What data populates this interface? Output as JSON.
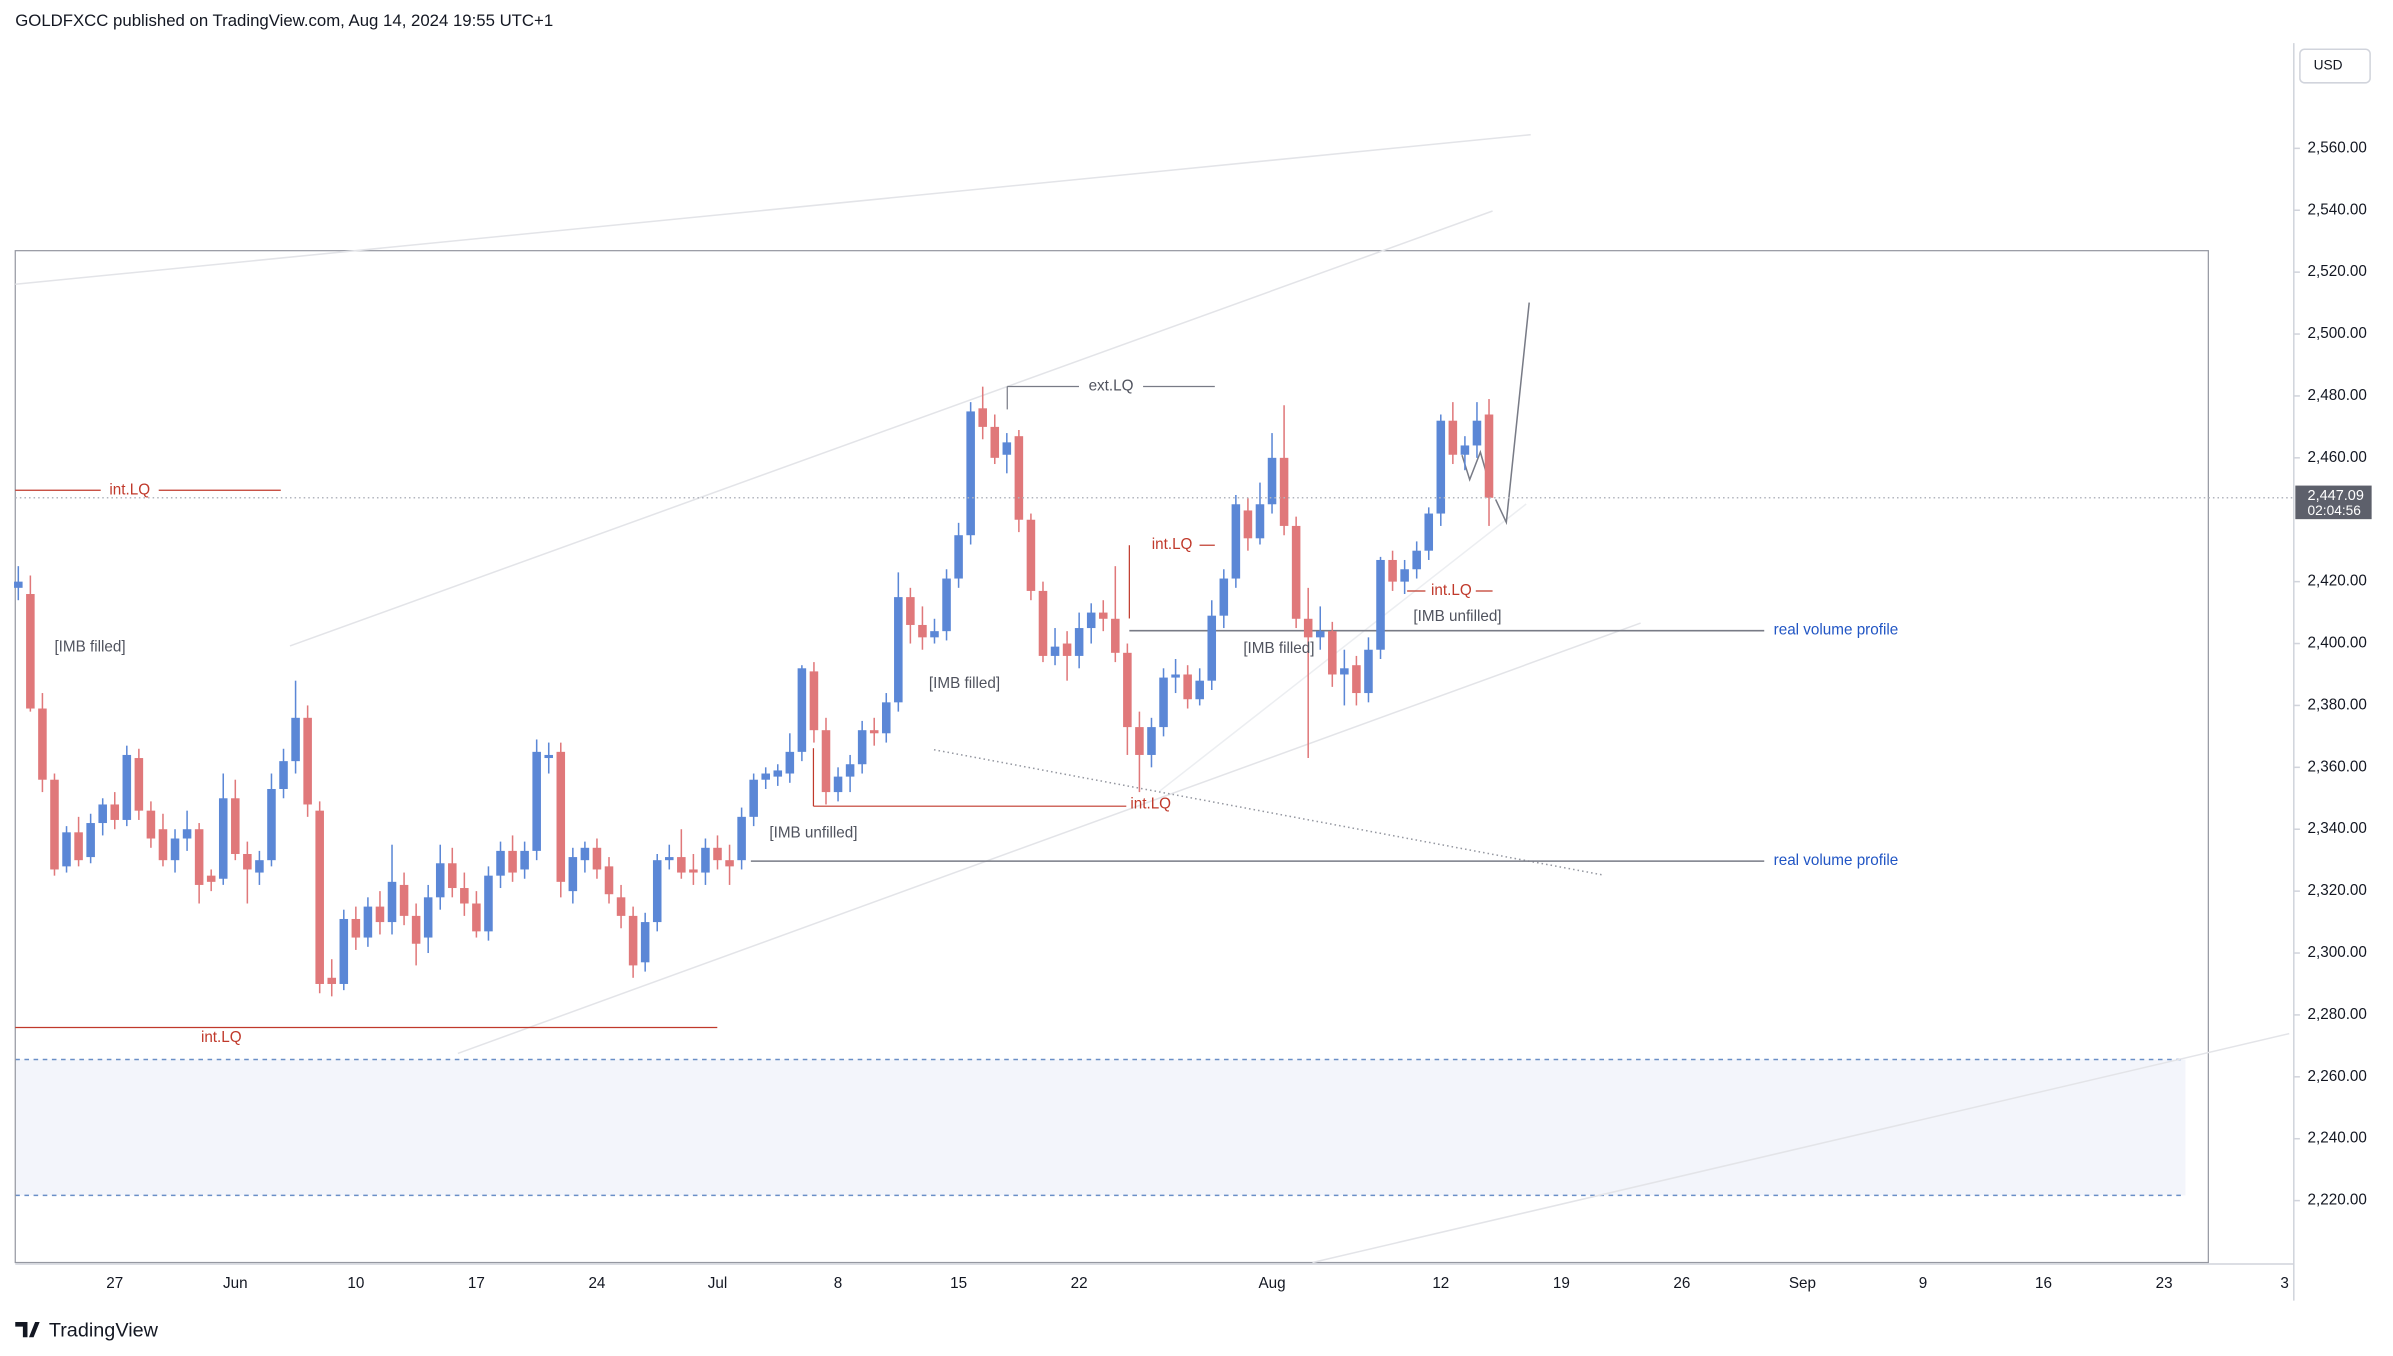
{
  "header": "GOLDFXCC published on TradingView.com, Aug 14, 2024 19:55 UTC+1",
  "footer": "TradingView",
  "chart_data": {
    "type": "candlestick",
    "currency": "USD",
    "up_color": "#5b87d6",
    "down_color": "#e0787a",
    "categories": [
      null,
      null,
      null,
      null,
      null,
      null,
      null,
      null,
      "27",
      null,
      null,
      null,
      null,
      null,
      null,
      null,
      null,
      null,
      "Jun",
      null,
      null,
      null,
      null,
      null,
      null,
      null,
      null,
      null,
      "10",
      null,
      null,
      null,
      null,
      null,
      null,
      null,
      null,
      null,
      "17",
      null,
      null,
      null,
      null,
      null,
      null,
      null,
      null,
      null,
      "24",
      null,
      null,
      null,
      null,
      null,
      null,
      null,
      null,
      null,
      "Jul",
      null,
      null,
      null,
      null,
      null,
      null,
      null,
      null,
      null,
      "8",
      null,
      null,
      null,
      null,
      null,
      null,
      null,
      null,
      null,
      "15",
      null,
      null,
      null,
      null,
      null,
      null,
      null,
      null,
      null,
      "22",
      null,
      null,
      null,
      null,
      null,
      null,
      null,
      null,
      null,
      null,
      null,
      null,
      null,
      null,
      null,
      "Aug",
      null,
      null,
      null,
      null,
      null,
      null,
      null,
      null,
      null,
      null,
      null,
      null,
      null,
      "12",
      null,
      null,
      null,
      null,
      null,
      null,
      null,
      null,
      null,
      "19",
      null,
      null,
      null,
      null,
      null,
      null,
      null,
      null,
      null,
      "26",
      null,
      null,
      null,
      null,
      null,
      null,
      null,
      null,
      null,
      "Sep",
      null,
      null,
      null,
      null,
      null,
      null,
      null,
      null,
      null,
      "9",
      null,
      null,
      null,
      null,
      null,
      null,
      null,
      null,
      null,
      "16",
      null,
      null,
      null,
      null,
      null,
      null,
      null,
      null,
      null,
      "23",
      null,
      null,
      null,
      null,
      null,
      null,
      null,
      null,
      null,
      "3"
    ],
    "ohlc": {
      "open": [
        2418,
        2416,
        2379,
        2356,
        2328,
        2339,
        2331,
        2342,
        2348,
        2343,
        2363,
        2346,
        2340,
        2330,
        2337,
        2340,
        2325,
        2324,
        2350,
        2332,
        2326,
        2330,
        2353,
        2362,
        2376,
        2346,
        2292,
        2290,
        2311,
        2305,
        2315,
        2310,
        2322,
        2312,
        2305,
        2318,
        2329,
        2321,
        2316,
        2307,
        2325,
        2333,
        2327,
        2333,
        2363,
        2365,
        2320,
        2330,
        2334,
        2328,
        2318,
        2312,
        2297,
        2310,
        2330,
        2331,
        2327,
        2326,
        2334,
        2330,
        2330,
        2344,
        2356,
        2357,
        2358,
        2365,
        2391,
        2372,
        2352,
        2357,
        2361,
        2372,
        2371,
        2381,
        2415,
        2406,
        2402,
        2404,
        2421,
        2435,
        2476,
        2470,
        2461,
        2467,
        2440,
        2417,
        2396,
        2400,
        2396,
        2405,
        2410,
        2408,
        2397,
        2373,
        2364,
        2373,
        2389,
        2390,
        2382,
        2388,
        2409,
        2421,
        2443,
        2434,
        2445,
        2460,
        2438,
        2408,
        2402,
        2404,
        2390,
        2393,
        2384,
        2398,
        2427,
        2420,
        2424,
        2430,
        2442,
        2472,
        2461,
        2464,
        2474,
        null,
        null,
        null,
        null,
        null,
        null,
        null,
        null,
        null,
        null,
        null,
        null,
        null,
        null,
        null,
        null,
        null,
        null,
        null,
        null,
        null,
        null,
        null,
        null,
        null,
        null,
        null,
        null,
        null,
        null,
        null,
        null,
        null,
        null,
        null,
        null,
        null,
        null,
        null,
        null,
        null,
        null,
        null,
        null,
        null,
        null,
        null,
        null,
        null,
        null,
        null,
        null,
        null,
        null,
        null,
        null,
        null,
        null,
        null,
        null,
        null,
        null,
        null,
        null,
        null,
        null
      ],
      "high": [
        2425,
        2422,
        2384,
        2358,
        2341,
        2344,
        2345,
        2350,
        2352,
        2367,
        2366,
        2349,
        2345,
        2340,
        2346,
        2342,
        2327,
        2358,
        2356,
        2336,
        2333,
        2358,
        2366,
        2388,
        2380,
        2349,
        2298,
        2314,
        2315,
        2318,
        2320,
        2335,
        2326,
        2316,
        2322,
        2335,
        2334,
        2326,
        2320,
        2328,
        2336,
        2338,
        2336,
        2369,
        2368,
        2368,
        2334,
        2336,
        2337,
        2331,
        2322,
        2315,
        2313,
        2332,
        2335,
        2340,
        2332,
        2337,
        2338,
        2335,
        2347,
        2358,
        2360,
        2361,
        2371,
        2393,
        2394,
        2376,
        2360,
        2364,
        2375,
        2376,
        2384,
        2423,
        2418,
        2412,
        2408,
        2424,
        2439,
        2478,
        2483,
        2474,
        2468,
        2469,
        2442,
        2420,
        2405,
        2404,
        2410,
        2413,
        2414,
        2425,
        2400,
        2378,
        2376,
        2392,
        2395,
        2393,
        2392,
        2414,
        2424,
        2448,
        2447,
        2452,
        2468,
        2477,
        2441,
        2418,
        2412,
        2407,
        2398,
        2396,
        2402,
        2428,
        2430,
        2427,
        2433,
        2444,
        2474,
        2478,
        2467,
        2478,
        2479,
        null,
        null,
        null,
        null,
        null,
        null,
        null,
        null,
        null,
        null,
        null,
        null,
        null,
        null,
        null,
        null,
        null,
        null,
        null,
        null,
        null,
        null,
        null,
        null,
        null,
        null,
        null,
        null,
        null,
        null,
        null,
        null,
        null,
        null,
        null,
        null,
        null,
        null,
        null,
        null,
        null,
        null,
        null,
        null,
        null,
        null,
        null,
        null,
        null,
        null,
        null,
        null,
        null,
        null,
        null,
        null,
        null,
        null,
        null,
        null,
        null,
        null,
        null,
        null,
        null,
        null
      ],
      "low": [
        2414,
        2378,
        2352,
        2325,
        2326,
        2328,
        2329,
        2338,
        2340,
        2341,
        2343,
        2334,
        2328,
        2326,
        2333,
        2316,
        2320,
        2322,
        2330,
        2316,
        2322,
        2328,
        2350,
        2358,
        2344,
        2287,
        2286,
        2288,
        2301,
        2302,
        2306,
        2306,
        2309,
        2296,
        2300,
        2314,
        2318,
        2312,
        2305,
        2304,
        2321,
        2323,
        2324,
        2330,
        2358,
        2318,
        2316,
        2326,
        2324,
        2316,
        2308,
        2292,
        2294,
        2307,
        2327,
        2324,
        2322,
        2322,
        2327,
        2322,
        2327,
        2341,
        2353,
        2354,
        2355,
        2362,
        2368,
        2348,
        2349,
        2352,
        2358,
        2367,
        2368,
        2378,
        2400,
        2398,
        2400,
        2401,
        2418,
        2432,
        2466,
        2458,
        2455,
        2436,
        2414,
        2394,
        2393,
        2388,
        2392,
        2400,
        2404,
        2394,
        2364,
        2352,
        2360,
        2370,
        2384,
        2379,
        2380,
        2385,
        2405,
        2418,
        2430,
        2432,
        2442,
        2435,
        2405,
        2363,
        2398,
        2386,
        2380,
        2380,
        2381,
        2395,
        2417,
        2416,
        2421,
        2427,
        2438,
        2458,
        2456,
        2460,
        2438,
        null,
        null,
        null,
        null,
        null,
        null,
        null,
        null,
        null,
        null,
        null,
        null,
        null,
        null,
        null,
        null,
        null,
        null,
        null,
        null,
        null,
        null,
        null,
        null,
        null,
        null,
        null,
        null,
        null,
        null,
        null,
        null,
        null,
        null,
        null,
        null,
        null,
        null,
        null,
        null,
        null,
        null,
        null,
        null,
        null,
        null,
        null,
        null,
        null,
        null,
        null,
        null,
        null,
        null,
        null,
        null,
        null,
        null,
        null,
        null,
        null,
        null,
        null,
        null,
        null,
        null
      ],
      "close": [
        2420,
        2379,
        2356,
        2327,
        2339,
        2330,
        2342,
        2348,
        2343,
        2364,
        2346,
        2337,
        2330,
        2337,
        2340,
        2322,
        2323,
        2350,
        2332,
        2327,
        2330,
        2353,
        2362,
        2376,
        2348,
        2290,
        2290,
        2311,
        2305,
        2315,
        2310,
        2323,
        2312,
        2303,
        2318,
        2329,
        2321,
        2316,
        2307,
        2325,
        2333,
        2326,
        2333,
        2365,
        2364,
        2323,
        2331,
        2334,
        2327,
        2319,
        2312,
        2296,
        2310,
        2330,
        2331,
        2326,
        2326,
        2334,
        2330,
        2328,
        2344,
        2356,
        2358,
        2359,
        2365,
        2392,
        2372,
        2352,
        2357,
        2361,
        2372,
        2371,
        2381,
        2415,
        2406,
        2402,
        2404,
        2421,
        2435,
        2475,
        2470,
        2460,
        2465,
        2440,
        2417,
        2396,
        2399,
        2396,
        2405,
        2410,
        2408,
        2397,
        2373,
        2364,
        2373,
        2389,
        2390,
        2382,
        2388,
        2409,
        2421,
        2445,
        2434,
        2445,
        2460,
        2438,
        2408,
        2402,
        2404,
        2390,
        2392,
        2384,
        2398,
        2427,
        2420,
        2424,
        2430,
        2442,
        2472,
        2461,
        2464,
        2472,
        2447.09,
        null,
        null,
        null,
        null,
        null,
        null,
        null,
        null,
        null,
        null,
        null,
        null,
        null,
        null,
        null,
        null,
        null,
        null,
        null,
        null,
        null,
        null,
        null,
        null,
        null,
        null,
        null,
        null,
        null,
        null,
        null,
        null,
        null,
        null,
        null,
        null,
        null,
        null,
        null,
        null,
        null,
        null,
        null,
        null,
        null,
        null,
        null,
        null,
        null,
        null,
        null,
        null,
        null,
        null,
        null,
        null,
        null,
        null,
        null,
        null,
        null,
        null,
        null,
        null,
        null,
        null
      ]
    },
    "ylim": [
      2200,
      2594
    ],
    "yticks": [
      {
        "value": 2220,
        "label": "2,220.00"
      },
      {
        "value": 2240,
        "label": "2,240.00"
      },
      {
        "value": 2260,
        "label": "2,260.00"
      },
      {
        "value": 2280,
        "label": "2,280.00"
      },
      {
        "value": 2300,
        "label": "2,300.00"
      },
      {
        "value": 2320,
        "label": "2,320.00"
      },
      {
        "value": 2340,
        "label": "2,340.00"
      },
      {
        "value": 2360,
        "label": "2,360.00"
      },
      {
        "value": 2380,
        "label": "2,380.00"
      },
      {
        "value": 2400,
        "label": "2,400.00"
      },
      {
        "value": 2420,
        "label": "2,420.00"
      },
      {
        "value": 2460,
        "label": "2,460.00"
      },
      {
        "value": 2480,
        "label": "2,480.00"
      },
      {
        "value": 2500,
        "label": "2,500.00"
      },
      {
        "value": 2520,
        "label": "2,520.00"
      },
      {
        "value": 2540,
        "label": "2,540.00"
      },
      {
        "value": 2560,
        "label": "2,560.00"
      }
    ],
    "grid": false,
    "last_price": {
      "value": 2447.09,
      "label": "2,447.09"
    },
    "countdown": "02:04:56",
    "annotations": [
      {
        "text": "int.LQ",
        "color": "#c0392b"
      },
      {
        "text": "[IMB filled]",
        "color": "#50535e"
      },
      {
        "text": "ext.LQ",
        "color": "#50535e"
      },
      {
        "text": "int.LQ",
        "color": "#c0392b"
      },
      {
        "text": "[IMB filled]",
        "color": "#50535e"
      },
      {
        "text": "[IMB unfilled]",
        "color": "#50535e"
      },
      {
        "text": "[IMB filled]",
        "color": "#50535e"
      },
      {
        "text": "[IMB unfilled]",
        "color": "#50535e"
      },
      {
        "text": "int.LQ",
        "color": "#c0392b"
      },
      {
        "text": "int.LQ",
        "color": "#c0392b"
      },
      {
        "text": "int.LQ",
        "color": "#c0392b"
      },
      {
        "text": "real volume profile",
        "color": "#2155c4"
      },
      {
        "text": "real volume profile",
        "color": "#2155c4"
      }
    ]
  }
}
